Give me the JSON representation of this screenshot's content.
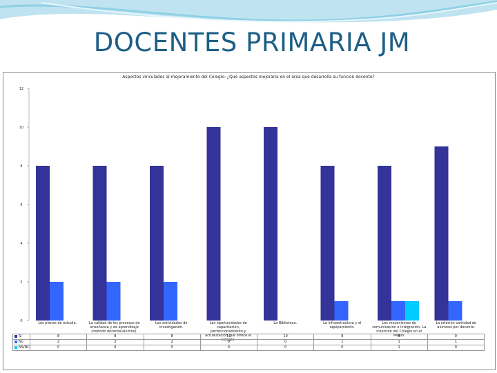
{
  "slide": {
    "title": "DOCENTES PRIMARIA JM"
  },
  "chart_data": {
    "type": "bar",
    "title": "Aspectos vinculados al mejoramiento del Colegio: ¿Qué aspectos mejoraría en el área que desarrolla su función docente?",
    "categories": [
      "Los planes de estudio.",
      "La calidad de los procesos de enseñanza y de aprendizaje (método docente/alumno).",
      "Las actividades de investigación.",
      "Las oportunidades de capacitación, perfeccionamiento y actualización que ofrece el Colegio.",
      "La Biblioteca.",
      "La infraestructura y el equipamiento.",
      "Los mecanismos de comunicación e integración. La inserción del Colegio en el Medio.",
      "La relación cantidad de alumnos por docente."
    ],
    "series": [
      {
        "name": "Sí",
        "color": "#333399",
        "values": [
          8,
          8,
          8,
          10,
          10,
          8,
          8,
          9
        ]
      },
      {
        "name": "No",
        "color": "#3366ff",
        "values": [
          2,
          2,
          2,
          0,
          0,
          1,
          1,
          1
        ]
      },
      {
        "name": "NS/NC",
        "color": "#00ccff",
        "values": [
          0,
          0,
          0,
          0,
          0,
          0,
          1,
          0
        ]
      }
    ],
    "ylim": [
      0,
      12
    ],
    "yticks": [
      0,
      2,
      4,
      6,
      8,
      10,
      12
    ],
    "grid": false,
    "legend": "data table"
  }
}
